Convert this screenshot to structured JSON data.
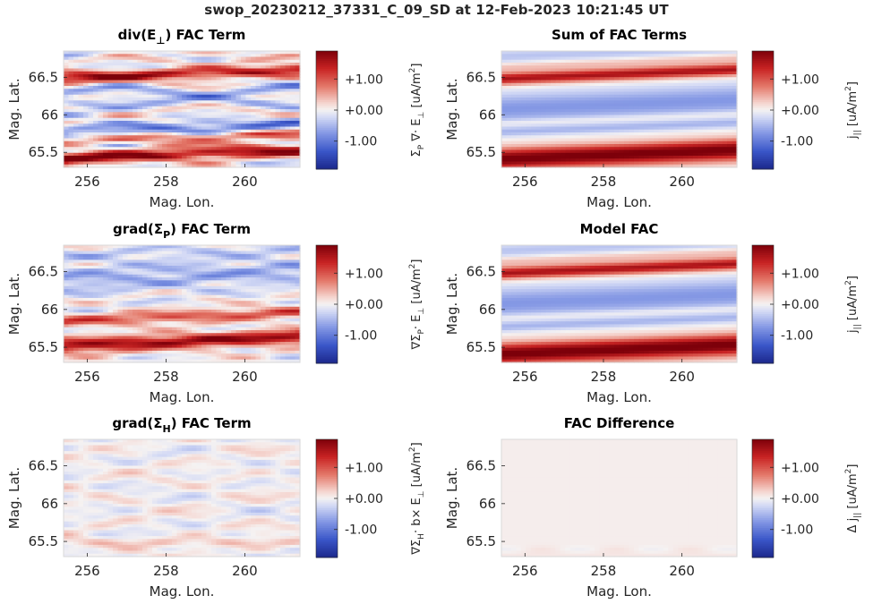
{
  "suptitle": "swop_20230212_37331_C_09_SD at 12-Feb-2023 10:21:45 UT",
  "chart_data": [
    {
      "type": "heatmap",
      "title": "div(E⊥) FAC Term",
      "title_parts": [
        "div(E",
        "⊥",
        ") FAC Term"
      ],
      "title_sub": true,
      "xlabel": "Mag. Lon.",
      "ylabel": "Mag. Lat.",
      "xlim": [
        255.4,
        261.4
      ],
      "ylim": [
        65.3,
        66.85
      ],
      "xticks": [
        256,
        258,
        260
      ],
      "xtick_labels": [
        "256",
        "258",
        "260"
      ],
      "yticks": [
        65.5,
        66,
        66.5
      ],
      "ytick_labels": [
        "65.5",
        "66",
        "66.5"
      ],
      "colorbar": {
        "ticks": [
          1.0,
          0.0,
          -1.0
        ],
        "tick_labels": [
          "+1.00",
          "+0.00",
          "-1.00"
        ],
        "label": "Σ_P ∇· E_⊥ [uA/m²]",
        "label_parts": [
          [
            "Σ",
            "n"
          ],
          [
            "P",
            "sub"
          ],
          [
            " ∇· E",
            "n"
          ],
          [
            "⊥",
            "sub"
          ],
          [
            "  [uA/m",
            "n"
          ],
          [
            "2",
            "sup"
          ],
          [
            "]",
            "n"
          ]
        ],
        "range": [
          -1.9,
          1.9
        ],
        "colormap": "blue-white-red"
      },
      "pattern": "noisy-bands",
      "seed": 11
    },
    {
      "type": "heatmap",
      "title": "Sum of FAC Terms",
      "xlabel": "Mag. Lon.",
      "ylabel": "Mag. Lat.",
      "xlim": [
        255.4,
        261.4
      ],
      "ylim": [
        65.3,
        66.85
      ],
      "xticks": [
        256,
        258,
        260
      ],
      "xtick_labels": [
        "256",
        "258",
        "260"
      ],
      "yticks": [
        65.5,
        66,
        66.5
      ],
      "ytick_labels": [
        "65.5",
        "66",
        "66.5"
      ],
      "colorbar": {
        "ticks": [
          1.0,
          0.0,
          -1.0
        ],
        "tick_labels": [
          "+1.00",
          "+0.00",
          "-1.00"
        ],
        "label": "j|| [uA/m²]",
        "label_parts": [
          [
            "j",
            "n"
          ],
          [
            "||",
            "sub"
          ],
          [
            "  [uA/m",
            "n"
          ],
          [
            "2",
            "sup"
          ],
          [
            "]",
            "n"
          ]
        ],
        "range": [
          -1.9,
          1.9
        ],
        "colormap": "blue-white-red"
      },
      "pattern": "smooth-bands",
      "seed": 21
    },
    {
      "type": "heatmap",
      "title": "grad(ΣP) FAC Term",
      "title_parts": [
        "grad(Σ",
        "P",
        ") FAC Term"
      ],
      "title_sub": true,
      "xlabel": "Mag. Lon.",
      "ylabel": "Mag. Lat.",
      "xlim": [
        255.4,
        261.4
      ],
      "ylim": [
        65.3,
        66.85
      ],
      "xticks": [
        256,
        258,
        260
      ],
      "xtick_labels": [
        "256",
        "258",
        "260"
      ],
      "yticks": [
        65.5,
        66,
        66.5
      ],
      "ytick_labels": [
        "65.5",
        "66",
        "66.5"
      ],
      "colorbar": {
        "ticks": [
          1.0,
          0.0,
          -1.0
        ],
        "tick_labels": [
          "+1.00",
          "+0.00",
          "-1.00"
        ],
        "label": "∇ΣP · E⊥ [uA/m²]",
        "label_parts": [
          [
            "∇Σ",
            "n"
          ],
          [
            "P",
            "sub"
          ],
          [
            "· E",
            "n"
          ],
          [
            "⊥",
            "sub"
          ],
          [
            "  [uA/m",
            "n"
          ],
          [
            "2",
            "sup"
          ],
          [
            "]",
            "n"
          ]
        ],
        "range": [
          -1.9,
          1.9
        ],
        "colormap": "blue-white-red"
      },
      "pattern": "gradP",
      "seed": 31
    },
    {
      "type": "heatmap",
      "title": "Model FAC",
      "xlabel": "Mag. Lon.",
      "ylabel": "Mag. Lat.",
      "xlim": [
        255.4,
        261.4
      ],
      "ylim": [
        65.3,
        66.85
      ],
      "xticks": [
        256,
        258,
        260
      ],
      "xtick_labels": [
        "256",
        "258",
        "260"
      ],
      "yticks": [
        65.5,
        66,
        66.5
      ],
      "ytick_labels": [
        "65.5",
        "66",
        "66.5"
      ],
      "colorbar": {
        "ticks": [
          1.0,
          0.0,
          -1.0
        ],
        "tick_labels": [
          "+1.00",
          "+0.00",
          "-1.00"
        ],
        "label": "j|| [uA/m²]",
        "label_parts": [
          [
            "j",
            "n"
          ],
          [
            "||",
            "sub"
          ],
          [
            "  [uA/m",
            "n"
          ],
          [
            "2",
            "sup"
          ],
          [
            "]",
            "n"
          ]
        ],
        "range": [
          -1.9,
          1.9
        ],
        "colormap": "blue-white-red"
      },
      "pattern": "smooth-bands",
      "seed": 41
    },
    {
      "type": "heatmap",
      "title": "grad(ΣH) FAC Term",
      "title_parts": [
        "grad(Σ",
        "H",
        ") FAC Term"
      ],
      "title_sub": true,
      "xlabel": "Mag. Lon.",
      "ylabel": "Mag. Lat.",
      "xlim": [
        255.4,
        261.4
      ],
      "ylim": [
        65.3,
        66.85
      ],
      "xticks": [
        256,
        258,
        260
      ],
      "xtick_labels": [
        "256",
        "258",
        "260"
      ],
      "yticks": [
        65.5,
        66,
        66.5
      ],
      "ytick_labels": [
        "65.5",
        "66",
        "66.5"
      ],
      "colorbar": {
        "ticks": [
          1.0,
          0.0,
          -1.0
        ],
        "tick_labels": [
          "+1.00",
          "+0.00",
          "-1.00"
        ],
        "label": "∇ΣH · b× E⊥ [uA/m²]",
        "label_parts": [
          [
            "∇Σ",
            "n"
          ],
          [
            "H",
            "sub"
          ],
          [
            "· b× E",
            "n"
          ],
          [
            "⊥",
            "sub"
          ],
          [
            "  [uA/m",
            "n"
          ],
          [
            "2",
            "sup"
          ],
          [
            "]",
            "n"
          ]
        ],
        "range": [
          -1.9,
          1.9
        ],
        "colormap": "blue-white-red"
      },
      "pattern": "weak-noise",
      "seed": 51
    },
    {
      "type": "heatmap",
      "title": "FAC Difference",
      "xlabel": "Mag. Lon.",
      "ylabel": "Mag. Lat.",
      "xlim": [
        255.4,
        261.4
      ],
      "ylim": [
        65.3,
        66.85
      ],
      "xticks": [
        256,
        258,
        260
      ],
      "xtick_labels": [
        "256",
        "258",
        "260"
      ],
      "yticks": [
        65.5,
        66,
        66.5
      ],
      "ytick_labels": [
        "65.5",
        "66",
        "66.5"
      ],
      "colorbar": {
        "ticks": [
          1.0,
          0.0,
          -1.0
        ],
        "tick_labels": [
          "+1.00",
          "+0.00",
          "-1.00"
        ],
        "label": "Δ j|| [uA/m²]",
        "label_parts": [
          [
            "Δ j",
            "n"
          ],
          [
            "||",
            "sub"
          ],
          [
            "  [uA/m",
            "n"
          ],
          [
            "2",
            "sup"
          ],
          [
            "]",
            "n"
          ]
        ],
        "range": [
          -1.9,
          1.9
        ],
        "colormap": "blue-white-red"
      },
      "pattern": "near-zero",
      "seed": 61
    }
  ]
}
